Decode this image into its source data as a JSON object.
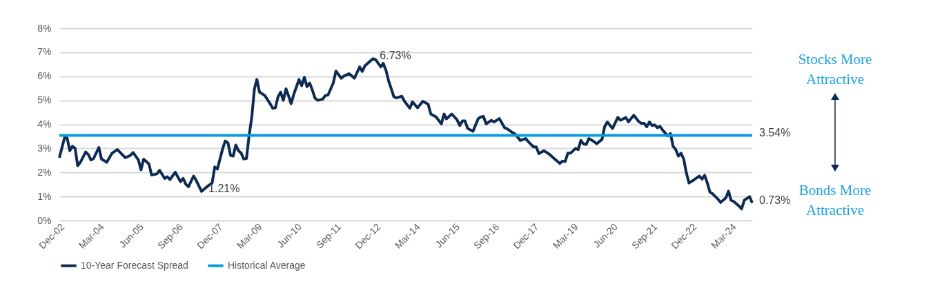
{
  "chart_data": {
    "type": "line",
    "grid": "y",
    "legend": "bottom",
    "xlim": [
      "2002-12",
      "2024-11"
    ],
    "xticks": [
      {
        "value": "2002-12",
        "label": "Dec-02"
      },
      {
        "value": "2004-03",
        "label": "Mar-04"
      },
      {
        "value": "2005-06",
        "label": "Jun-05"
      },
      {
        "value": "2006-09",
        "label": "Sep-06"
      },
      {
        "value": "2007-12",
        "label": "Dec-07"
      },
      {
        "value": "2009-03",
        "label": "Mar-09"
      },
      {
        "value": "2010-06",
        "label": "Jun-10"
      },
      {
        "value": "2011-09",
        "label": "Sep-11"
      },
      {
        "value": "2012-12",
        "label": "Dec-12"
      },
      {
        "value": "2014-03",
        "label": "Mar-14"
      },
      {
        "value": "2015-06",
        "label": "Jun-15"
      },
      {
        "value": "2016-09",
        "label": "Sep-16"
      },
      {
        "value": "2017-12",
        "label": "Dec-17"
      },
      {
        "value": "2019-03",
        "label": "Mar-19"
      },
      {
        "value": "2020-06",
        "label": "Jun-20"
      },
      {
        "value": "2021-09",
        "label": "Sep-21"
      },
      {
        "value": "2022-12",
        "label": "Dec-22"
      },
      {
        "value": "2024-03",
        "label": "Mar-24"
      }
    ],
    "ylim": [
      0,
      8
    ],
    "yticks": [
      {
        "value": 0,
        "label": "0%"
      },
      {
        "value": 1,
        "label": "1%"
      },
      {
        "value": 2,
        "label": "2%"
      },
      {
        "value": 3,
        "label": "3%"
      },
      {
        "value": 4,
        "label": "4%"
      },
      {
        "value": 5,
        "label": "5%"
      },
      {
        "value": 6,
        "label": "6%"
      },
      {
        "value": 7,
        "label": "7%"
      },
      {
        "value": 8,
        "label": "8%"
      }
    ],
    "series": [
      {
        "name": "10-Year Forecast Spread",
        "color": "#0c2a52",
        "x": [
          "2002-12",
          "2003-02",
          "2003-03",
          "2003-04",
          "2003-05",
          "2003-06",
          "2003-07",
          "2003-08",
          "2003-10",
          "2003-11",
          "2003-12",
          "2004-01",
          "2004-03",
          "2004-04",
          "2004-06",
          "2004-08",
          "2004-10",
          "2005-01",
          "2005-03",
          "2005-04",
          "2005-06",
          "2005-07",
          "2005-08",
          "2005-10",
          "2005-11",
          "2006-01",
          "2006-02",
          "2006-04",
          "2006-05",
          "2006-06",
          "2006-08",
          "2006-10",
          "2006-11",
          "2006-12",
          "2007-01",
          "2007-03",
          "2007-04",
          "2007-06",
          "2007-08",
          "2007-10",
          "2007-11",
          "2007-12",
          "2008-02",
          "2008-03",
          "2008-04",
          "2008-05",
          "2008-06",
          "2008-07",
          "2008-08",
          "2008-09",
          "2008-10",
          "2008-11",
          "2008-12",
          "2009-01",
          "2009-02",
          "2009-03",
          "2009-04",
          "2009-06",
          "2009-08",
          "2009-09",
          "2009-10",
          "2009-11",
          "2009-12",
          "2010-01",
          "2010-02",
          "2010-03",
          "2010-04",
          "2010-05",
          "2010-07",
          "2010-08",
          "2010-09",
          "2010-10",
          "2010-11",
          "2010-12",
          "2011-01",
          "2011-02",
          "2011-04",
          "2011-05",
          "2011-06",
          "2011-08",
          "2011-09",
          "2011-11",
          "2011-12",
          "2012-02",
          "2012-04",
          "2012-05",
          "2012-06",
          "2012-07",
          "2012-08",
          "2012-09",
          "2012-11",
          "2012-12",
          "2013-02",
          "2013-03",
          "2013-04",
          "2013-05",
          "2013-07",
          "2013-08",
          "2013-10",
          "2013-11",
          "2014-01",
          "2014-02",
          "2014-04",
          "2014-06",
          "2014-08",
          "2014-09",
          "2014-11",
          "2015-01",
          "2015-02",
          "2015-03",
          "2015-05",
          "2015-07",
          "2015-08",
          "2015-09",
          "2015-10",
          "2015-11",
          "2016-01",
          "2016-03",
          "2016-04",
          "2016-05",
          "2016-06",
          "2016-08",
          "2016-09",
          "2016-11",
          "2017-01",
          "2017-02",
          "2017-04",
          "2017-05",
          "2017-07",
          "2017-09",
          "2017-10",
          "2017-12",
          "2018-01",
          "2018-02",
          "2018-04",
          "2018-06",
          "2018-08",
          "2018-09",
          "2018-10",
          "2018-11",
          "2018-12",
          "2019-01",
          "2019-02",
          "2019-04",
          "2019-05",
          "2019-06",
          "2019-07",
          "2019-08",
          "2019-09",
          "2019-11",
          "2019-12",
          "2020-02",
          "2020-03",
          "2020-04",
          "2020-06",
          "2020-08",
          "2020-09",
          "2020-11",
          "2020-12",
          "2021-02",
          "2021-04",
          "2021-05",
          "2021-06",
          "2021-07",
          "2021-08",
          "2021-09",
          "2021-10",
          "2021-11",
          "2021-12",
          "2022-01",
          "2022-03",
          "2022-04",
          "2022-05",
          "2022-06",
          "2022-07",
          "2022-08",
          "2022-09",
          "2022-10",
          "2022-11",
          "2023-01",
          "2023-03",
          "2023-04",
          "2023-05",
          "2023-06",
          "2023-07",
          "2023-08",
          "2023-10",
          "2023-11",
          "2024-01",
          "2024-02",
          "2024-03",
          "2024-04",
          "2024-06",
          "2024-07",
          "2024-08",
          "2024-10",
          "2024-11"
        ],
        "values": [
          2.61,
          3.47,
          3.43,
          2.9,
          3.09,
          3.0,
          2.28,
          2.42,
          2.85,
          2.74,
          2.52,
          2.58,
          3.04,
          2.56,
          2.42,
          2.8,
          2.95,
          2.61,
          2.71,
          2.83,
          2.52,
          2.11,
          2.55,
          2.35,
          1.89,
          1.94,
          2.09,
          1.75,
          1.82,
          1.7,
          2.01,
          1.61,
          1.75,
          1.51,
          1.4,
          1.85,
          1.66,
          1.21,
          1.4,
          1.56,
          2.23,
          2.14,
          3.0,
          3.31,
          3.23,
          2.71,
          2.68,
          3.14,
          2.9,
          2.8,
          2.56,
          2.58,
          3.52,
          4.29,
          5.48,
          5.87,
          5.34,
          5.2,
          4.86,
          4.67,
          4.69,
          5.15,
          5.34,
          5.0,
          5.48,
          5.2,
          4.86,
          5.24,
          5.87,
          5.61,
          5.96,
          5.57,
          5.72,
          5.44,
          5.1,
          5.0,
          5.05,
          5.2,
          5.22,
          5.72,
          6.22,
          5.92,
          6.01,
          6.11,
          5.92,
          6.15,
          6.39,
          6.2,
          6.44,
          6.54,
          6.73,
          6.7,
          6.39,
          6.54,
          6.25,
          5.82,
          5.15,
          5.1,
          5.17,
          4.96,
          4.67,
          4.94,
          4.69,
          4.96,
          4.84,
          4.43,
          4.31,
          4.02,
          4.43,
          4.23,
          4.43,
          4.19,
          3.95,
          4.14,
          4.14,
          3.83,
          3.71,
          4.23,
          4.31,
          4.33,
          4.02,
          4.17,
          4.1,
          4.24,
          3.86,
          3.81,
          3.66,
          3.6,
          3.33,
          3.41,
          3.28,
          3.06,
          3.06,
          2.78,
          2.9,
          2.76,
          2.56,
          2.47,
          2.37,
          2.47,
          2.45,
          2.8,
          2.8,
          3.0,
          2.95,
          3.33,
          3.19,
          3.16,
          3.41,
          3.28,
          3.19,
          3.38,
          3.9,
          4.1,
          3.83,
          4.29,
          4.17,
          4.29,
          4.1,
          4.38,
          4.11,
          4.04,
          4.04,
          3.9,
          4.1,
          3.95,
          3.98,
          3.86,
          3.92,
          3.76,
          3.52,
          3.62,
          3.09,
          2.95,
          2.68,
          2.8,
          2.56,
          1.99,
          1.56,
          1.7,
          1.85,
          1.72,
          1.88,
          1.56,
          1.18,
          1.11,
          0.89,
          0.75,
          0.94,
          1.22,
          0.84,
          0.79,
          0.6,
          0.48,
          0.84,
          0.99,
          0.73
        ]
      },
      {
        "name": "Historical Average",
        "color": "#009ddc",
        "x": [
          "2002-12",
          "2024-11"
        ],
        "values": [
          3.54,
          3.54
        ]
      }
    ],
    "annotations": [
      {
        "text": "6.73%",
        "x": "2012-11",
        "y": 6.73
      },
      {
        "text": "1.21%",
        "x": "2007-06",
        "y": 1.21
      },
      {
        "text": "0.73%",
        "x": "2024-11",
        "y": 0.73
      },
      {
        "text": "3.54%",
        "x": "2024-11",
        "y": 3.54
      },
      "Stocks More Attractive",
      "Bonds More Attractive"
    ]
  }
}
